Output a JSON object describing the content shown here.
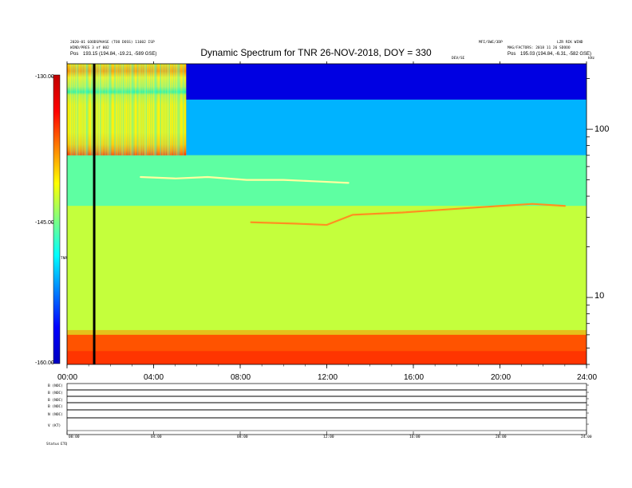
{
  "header": {
    "title": "Dynamic Spectrum for TNR 26-NOV-2018, DOY = 330",
    "left_lines": [
      "2020-01 GOODSPHASE (TOO DOSS) 11602 ISP",
      "WIND/PRES 3 of 002"
    ],
    "left_pos_label": "Pos",
    "left_pos": "193.15 (194.84, -19.21, -589 GSE)",
    "right_top_a": "MFI/SWE/3DP",
    "right_top_b": "LZR RIK WIND",
    "right_lines": [
      "MAG/FACTORS: 2018 11 26 SDOOO"
    ],
    "right_pos_label": "Pos",
    "right_pos": "195.03 (194.84, -6.31, -582 GSE)",
    "right_small_label": "kHz",
    "mid_small_label": "DEV/SE",
    "colorbar_label": "TNR"
  },
  "colors": {
    "background": "#ffffff",
    "axis": "#000000",
    "colormap": [
      "#0000c0",
      "#0000ff",
      "#0080ff",
      "#00ffff",
      "#80ff80",
      "#ffff00",
      "#ff8000",
      "#ff0000",
      "#c00000"
    ]
  },
  "panels": {
    "labels": [
      "B (NOC)",
      "B (NOC)",
      "B (NOC)",
      "B (NOC)",
      "N (NOC)",
      "V (KT)"
    ],
    "time_labels": [
      "00:00",
      "04:00",
      "08:00",
      "12:00",
      "16:00",
      "20:00",
      "24:00"
    ],
    "footer_label": "Status",
    "footer_value": "ETQ"
  },
  "chart_data": {
    "type": "heatmap",
    "title": "Dynamic Spectrum for TNR 26-NOV-2018, DOY = 330",
    "x_label": "",
    "y_label": "",
    "x_ticks": [
      "00:00",
      "04:00",
      "08:00",
      "12:00",
      "16:00",
      "20:00",
      "24:00"
    ],
    "x_range_hours": [
      0,
      24
    ],
    "y_scale": "log",
    "y_unit": "kHz",
    "y_ticks": [
      10,
      100
    ],
    "y_range_khz": [
      4,
      245
    ],
    "colorbar": {
      "label": "TNR",
      "ticks": [
        "-130.00",
        "-145.00",
        "-160.00"
      ],
      "range": [
        -160,
        -130
      ]
    },
    "data_gap": {
      "start_hour": 1.2,
      "end_hour": 1.3
    },
    "bands": [
      {
        "freq_min_khz": 150,
        "freq_max_khz": 245,
        "level_db": -158,
        "time_range_hours": [
          5.5,
          24
        ]
      },
      {
        "freq_min_khz": 70,
        "freq_max_khz": 150,
        "level_db": -151,
        "time_range_hours": [
          5.5,
          24
        ]
      },
      {
        "freq_min_khz": 70,
        "freq_max_khz": 245,
        "level_db": -138,
        "time_range_hours": [
          0,
          5.5
        ]
      },
      {
        "freq_min_khz": 35,
        "freq_max_khz": 70,
        "level_db": -146,
        "time_range_hours": [
          0,
          24
        ]
      },
      {
        "freq_min_khz": 6,
        "freq_max_khz": 35,
        "level_db": -143,
        "time_range_hours": [
          0,
          24
        ]
      },
      {
        "freq_min_khz": 4,
        "freq_max_khz": 6,
        "level_db": -134,
        "time_range_hours": [
          0,
          24
        ]
      }
    ],
    "emission_lanes": [
      {
        "name": "",
        "points": [
          [
            3.4,
            52
          ],
          [
            5.0,
            51
          ],
          [
            6.5,
            52
          ],
          [
            8.3,
            50
          ],
          [
            10.0,
            50
          ],
          [
            11.5,
            49
          ],
          [
            13.0,
            48
          ]
        ]
      },
      {
        "name": "",
        "points": [
          [
            8.5,
            28
          ],
          [
            10.5,
            27.5
          ],
          [
            12.0,
            27
          ],
          [
            13.2,
            31
          ],
          [
            15.5,
            32
          ],
          [
            17.0,
            33
          ],
          [
            18.5,
            34
          ],
          [
            20.0,
            35
          ],
          [
            21.5,
            36
          ],
          [
            23.0,
            35
          ]
        ]
      }
    ]
  }
}
